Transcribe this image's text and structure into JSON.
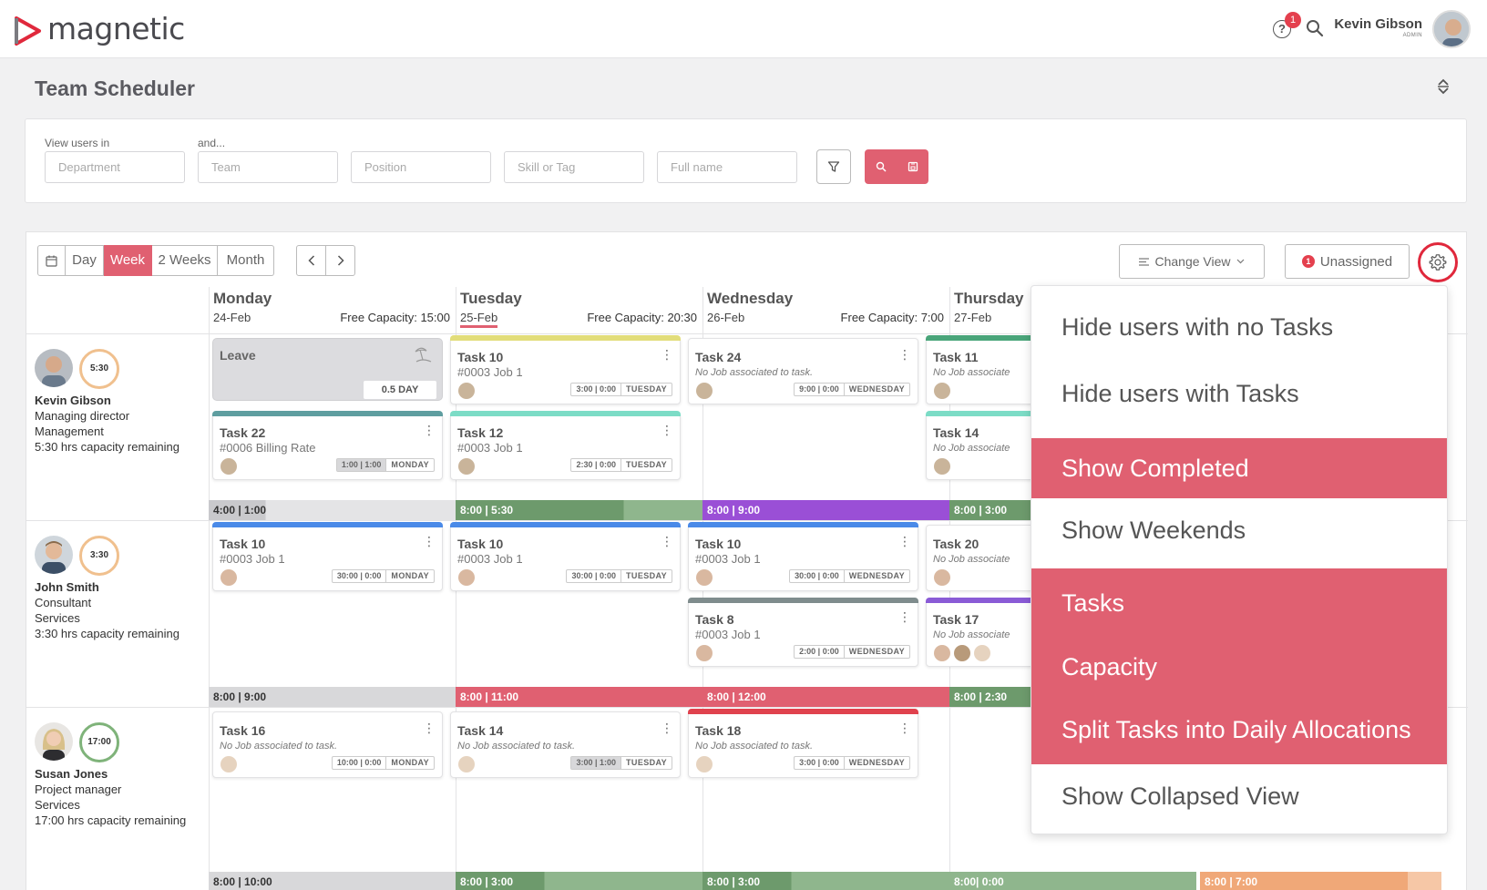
{
  "app": {
    "logo_text": "magnetic",
    "page_title": "Team Scheduler",
    "notification_count": "1",
    "user": {
      "name": "Kevin Gibson",
      "role": "ADMIN"
    }
  },
  "colors": {
    "accent": "#e06071",
    "settings_highlight": "#e0283c",
    "bar_yellow": "#e2dd7a",
    "bar_teal": "#7cdcc6",
    "bar_blue": "#4a8ae8",
    "bar_grey": "#7f8c8d",
    "bar_purple": "#8a5bd6",
    "bar_green": "#4aa57a",
    "bar_red": "#e0424e",
    "bar_slate": "#5f9ea0",
    "cap_green": "#6d9a6c",
    "cap_green_light": "#8fb68d",
    "cap_purple": "#9a4fd6",
    "cap_red": "#e06071",
    "cap_orange": "#f0a878"
  },
  "filters": {
    "label1": "View users in",
    "label2": "and...",
    "department_placeholder": "Department",
    "team_placeholder": "Team",
    "position_placeholder": "Position",
    "skill_placeholder": "Skill or Tag",
    "fullname_placeholder": "Full name",
    "filter_icon": "filter-icon",
    "search_icon": "search-icon",
    "save_icon": "save-icon"
  },
  "toolbar": {
    "views": [
      "Day",
      "Week",
      "2 Weeks",
      "Month"
    ],
    "active_view": "Week",
    "change_view_label": "Change View",
    "unassigned_label": "Unassigned",
    "unassigned_count": "1"
  },
  "days": [
    {
      "name": "Monday",
      "date": "24-Feb",
      "capacity": "Free Capacity: 15:00"
    },
    {
      "name": "Tuesday",
      "date": "25-Feb",
      "capacity": "Free Capacity: 20:30"
    },
    {
      "name": "Wednesday",
      "date": "26-Feb",
      "capacity": "Free Capacity: 7:00"
    },
    {
      "name": "Thursday",
      "date": "27-Feb",
      "capacity": ""
    }
  ],
  "users": [
    {
      "name": "Kevin Gibson",
      "title": "Managing director",
      "dept": "Management",
      "capacity_text": "5:30 hrs capacity remaining",
      "ring": "5:30"
    },
    {
      "name": "John Smith",
      "title": "Consultant",
      "dept": "Services",
      "capacity_text": "3:30 hrs capacity remaining",
      "ring": "3:30"
    },
    {
      "name": "Susan Jones",
      "title": "Project manager",
      "dept": "Services",
      "capacity_text": "17:00 hrs capacity remaining",
      "ring": "17:00"
    }
  ],
  "leave": {
    "title": "Leave",
    "amount": "0.5 DAY"
  },
  "tasks": {
    "r1_tue_a": {
      "title": "Task 10",
      "sub": "#0003 Job 1",
      "time": "3:00 | 0:00",
      "day": "TUESDAY"
    },
    "r1_wed_a": {
      "title": "Task 24",
      "sub": "No Job associated to task.",
      "time": "9:00 | 0:00",
      "day": "WEDNESDAY"
    },
    "r1_thu_a": {
      "title": "Task 11",
      "sub": "No Job associate"
    },
    "r1_mon_b": {
      "title": "Task 22",
      "sub": "#0006 Billing Rate",
      "time": "1:00 | 1:00",
      "day": "MONDAY"
    },
    "r1_tue_b": {
      "title": "Task 12",
      "sub": "#0003 Job 1",
      "time": "2:30 | 0:00",
      "day": "TUESDAY"
    },
    "r1_thu_b": {
      "title": "Task 14",
      "sub": "No Job associate"
    },
    "r2_mon_a": {
      "title": "Task 10",
      "sub": "#0003 Job 1",
      "time": "30:00 | 0:00",
      "day": "MONDAY"
    },
    "r2_tue_a": {
      "title": "Task 10",
      "sub": "#0003 Job 1",
      "time": "30:00 | 0:00",
      "day": "TUESDAY"
    },
    "r2_wed_a": {
      "title": "Task 10",
      "sub": "#0003 Job 1",
      "time": "30:00 | 0:00",
      "day": "WEDNESDAY"
    },
    "r2_thu_a": {
      "title": "Task 20",
      "sub": "No Job associate"
    },
    "r2_wed_b": {
      "title": "Task 8",
      "sub": "#0003 Job 1",
      "time": "2:00 | 0:00",
      "day": "WEDNESDAY"
    },
    "r2_thu_b": {
      "title": "Task 17",
      "sub": "No Job associate"
    },
    "r3_mon_a": {
      "title": "Task 16",
      "sub": "No Job associated to task.",
      "time": "10:00 | 0:00",
      "day": "MONDAY"
    },
    "r3_tue_a": {
      "title": "Task 14",
      "sub": "No Job associated to task.",
      "time": "3:00 | 1:00",
      "day": "TUESDAY"
    },
    "r3_wed_a": {
      "title": "Task 18",
      "sub": "No Job associated to task.",
      "time": "3:00 | 0:00",
      "day": "WEDNESDAY"
    }
  },
  "capacity_bars": {
    "r1": [
      "4:00 | 1:00",
      "8:00 | 5:30",
      "8:00 | 9:00",
      "8:00 | 3:00"
    ],
    "r2": [
      "8:00 | 9:00",
      "8:00 | 11:00",
      "8:00 | 12:00",
      "8:00 | 2:30"
    ],
    "r3": [
      "8:00 | 10:00",
      "8:00 | 3:00",
      "8:00 | 3:00",
      "8:00| 0:00",
      "8:00 | 7:00"
    ]
  },
  "dropdown": {
    "items": [
      {
        "label": "Hide users with no Tasks",
        "selected": false
      },
      {
        "label": "Hide users with Tasks",
        "selected": false
      },
      {
        "label": "Show Completed",
        "selected": true
      },
      {
        "label": "Show Weekends",
        "selected": false
      },
      {
        "label": "Tasks",
        "selected": true
      },
      {
        "label": "Capacity",
        "selected": true
      },
      {
        "label": "Split Tasks into Daily Allocations",
        "selected": true
      },
      {
        "label": "Show Collapsed View",
        "selected": false
      }
    ]
  }
}
